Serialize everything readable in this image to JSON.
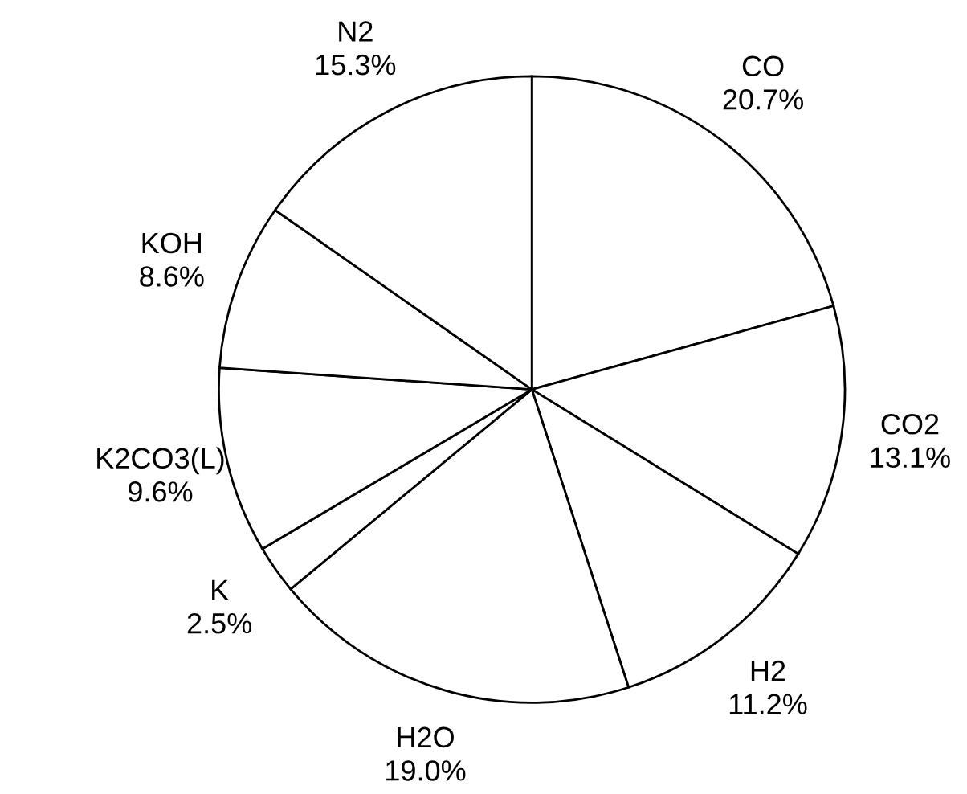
{
  "chart_data": {
    "type": "pie",
    "categories": [
      "CO",
      "CO2",
      "H2",
      "H2O",
      "K",
      "K2CO3(L)",
      "KOH",
      "N2"
    ],
    "values": [
      20.7,
      13.1,
      11.2,
      19.0,
      2.5,
      9.6,
      8.6,
      15.3
    ],
    "value_labels": [
      "20.7%",
      "13.1%",
      "11.2%",
      "19.0%",
      "2.5%",
      "9.6%",
      "8.6%",
      "15.3%"
    ],
    "colors": [
      "#ffffff",
      "#ffffff",
      "#ffffff",
      "#ffffff",
      "#ffffff",
      "#ffffff",
      "#ffffff",
      "#ffffff"
    ]
  }
}
